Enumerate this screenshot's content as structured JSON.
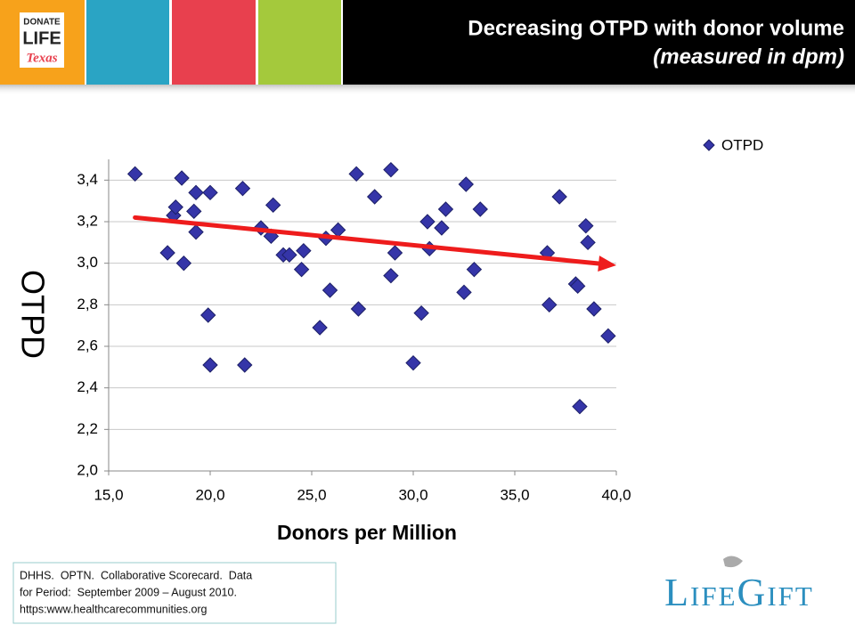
{
  "header": {
    "logo": [
      "DONATE",
      "LIFE",
      "Texas"
    ],
    "title": "Decreasing OTPD with donor volume",
    "subtitle": "(measured in dpm)"
  },
  "chart_data": {
    "type": "scatter",
    "x_label": "Donors per Million",
    "y_label": "OTPD",
    "xlim": [
      15.0,
      40.0
    ],
    "ylim": [
      2.0,
      3.5
    ],
    "xticks": [
      {
        "value": 15,
        "label": "15,0"
      },
      {
        "value": 20,
        "label": "20,0"
      },
      {
        "value": 25,
        "label": "25,0"
      },
      {
        "value": 30,
        "label": "30,0"
      },
      {
        "value": 35,
        "label": "35,0"
      },
      {
        "value": 40,
        "label": "40,0"
      }
    ],
    "yticks": [
      {
        "value": 2.0,
        "label": "2,0"
      },
      {
        "value": 2.2,
        "label": "2,2"
      },
      {
        "value": 2.4,
        "label": "2,4"
      },
      {
        "value": 2.6,
        "label": "2,6"
      },
      {
        "value": 2.8,
        "label": "2,8"
      },
      {
        "value": 3.0,
        "label": "3,0"
      },
      {
        "value": 3.2,
        "label": "3,2"
      },
      {
        "value": 3.4,
        "label": "3,4"
      }
    ],
    "grid": true,
    "legend": "top-right",
    "series": [
      {
        "name": "OTPD",
        "color": "#3535a8",
        "x": [
          16.3,
          17.9,
          18.2,
          18.3,
          18.6,
          18.7,
          19.2,
          19.3,
          19.3,
          19.9,
          20.0,
          20.0,
          21.6,
          21.7,
          22.5,
          23.0,
          23.1,
          23.6,
          23.9,
          24.5,
          24.6,
          25.4,
          25.7,
          25.9,
          26.3,
          27.2,
          27.3,
          28.1,
          28.9,
          28.9,
          29.1,
          30.0,
          30.4,
          30.7,
          30.8,
          31.4,
          31.6,
          32.5,
          32.6,
          33.0,
          33.3,
          36.6,
          36.7,
          37.2,
          38.0,
          38.1,
          38.2,
          38.5,
          38.6,
          38.9,
          39.6
        ],
        "values": [
          3.43,
          3.05,
          3.23,
          3.27,
          3.41,
          3.0,
          3.25,
          3.34,
          3.15,
          2.75,
          2.51,
          3.34,
          3.36,
          2.51,
          3.17,
          3.13,
          3.28,
          3.04,
          3.04,
          2.97,
          3.06,
          2.69,
          3.12,
          2.87,
          3.16,
          3.43,
          2.78,
          3.32,
          3.45,
          2.94,
          3.05,
          2.52,
          2.76,
          3.2,
          3.07,
          3.17,
          3.26,
          2.86,
          3.38,
          2.97,
          3.26,
          3.05,
          2.8,
          3.32,
          2.9,
          2.89,
          2.31,
          3.18,
          3.1,
          2.78,
          2.65
        ]
      }
    ],
    "trend_line": {
      "color": "#ee1c1c",
      "x": [
        16.3,
        40.0
      ],
      "values": [
        3.22,
        2.99
      ]
    }
  },
  "source": [
    "DHHS.  OPTN.  Collaborative Scorecard.  Data",
    "for Period:  September 2009 – August 2010.",
    "https:www.healthcarecommunities.org"
  ],
  "brand": "LifeGift"
}
